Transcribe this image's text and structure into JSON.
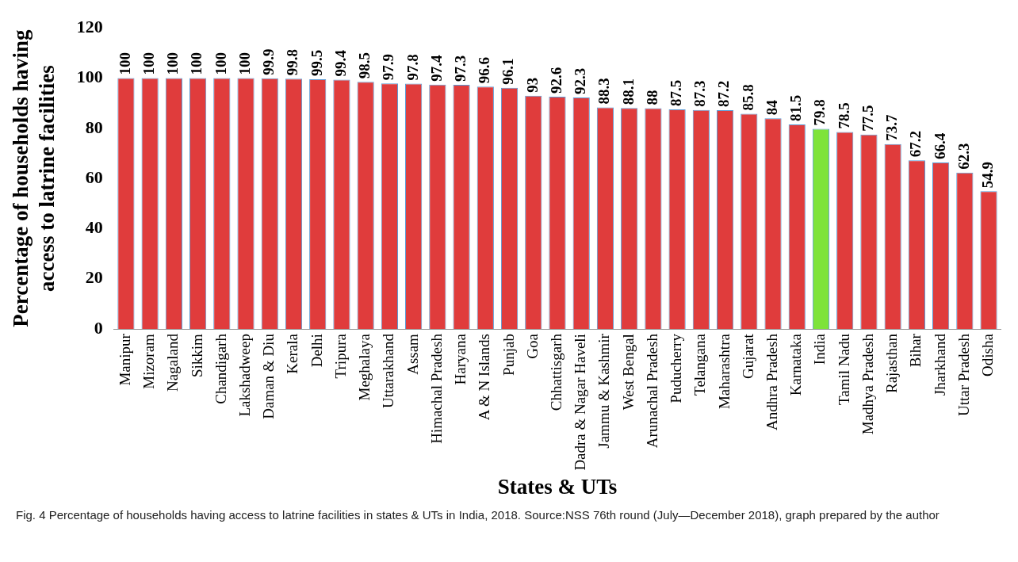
{
  "chart_data": {
    "type": "bar",
    "xlabel": "States & UTs",
    "ylabel": "Percentage of households having access to latrine facilities",
    "categories": [
      "Manipur",
      "Mizoram",
      "Nagaland",
      "Sikkim",
      "Chandigarh",
      "Lakshadweep",
      "Daman & Diu",
      "Kerala",
      "Delhi",
      "Tripura",
      "Meghalaya",
      "Uttarakhand",
      "Assam",
      "Himachal Pradesh",
      "Haryana",
      "A & N Islands",
      "Punjab",
      "Goa",
      "Chhattisgarh",
      "Dadra & Nagar Haveli",
      "Jammu & Kashmir",
      "West Bengal",
      "Arunachal Pradesh",
      "Puducherry",
      "Telangana",
      "Maharashtra",
      "Gujarat",
      "Andhra Pradesh",
      "Karnataka",
      "India",
      "Tamil Nadu",
      "Madhya Pradesh",
      "Rajasthan",
      "Bihar",
      "Jharkhand",
      "Uttar Pradesh",
      "Odisha"
    ],
    "values": [
      100,
      100,
      100,
      100,
      100,
      100,
      99.9,
      99.8,
      99.5,
      99.4,
      98.5,
      97.9,
      97.8,
      97.4,
      97.3,
      96.6,
      96.1,
      93,
      92.6,
      92.3,
      88.3,
      88.1,
      88,
      87.5,
      87.3,
      87.2,
      85.8,
      84,
      81.5,
      79.8,
      78.5,
      77.5,
      73.7,
      67.2,
      66.4,
      62.3,
      54.9
    ],
    "colors": [
      "#e03c3c",
      "#e03c3c",
      "#e03c3c",
      "#e03c3c",
      "#e03c3c",
      "#e03c3c",
      "#e03c3c",
      "#e03c3c",
      "#e03c3c",
      "#e03c3c",
      "#e03c3c",
      "#e03c3c",
      "#e03c3c",
      "#e03c3c",
      "#e03c3c",
      "#e03c3c",
      "#e03c3c",
      "#e03c3c",
      "#e03c3c",
      "#e03c3c",
      "#e03c3c",
      "#e03c3c",
      "#e03c3c",
      "#e03c3c",
      "#e03c3c",
      "#e03c3c",
      "#e03c3c",
      "#e03c3c",
      "#e03c3c",
      "#7ee33a",
      "#e03c3c",
      "#e03c3c",
      "#e03c3c",
      "#e03c3c",
      "#e03c3c",
      "#e03c3c",
      "#e03c3c"
    ],
    "ylim": [
      0,
      120
    ],
    "yticks": [
      0,
      20,
      40,
      60,
      80,
      100,
      120
    ],
    "grid": false,
    "legend": false,
    "data_labels": true,
    "annotations": [
      "Fig. 4 Percentage of households having access to latrine facilities in states & UTs in India, 2018. Source:NSS 76th round (July—December 2018), graph prepared by the author"
    ]
  }
}
